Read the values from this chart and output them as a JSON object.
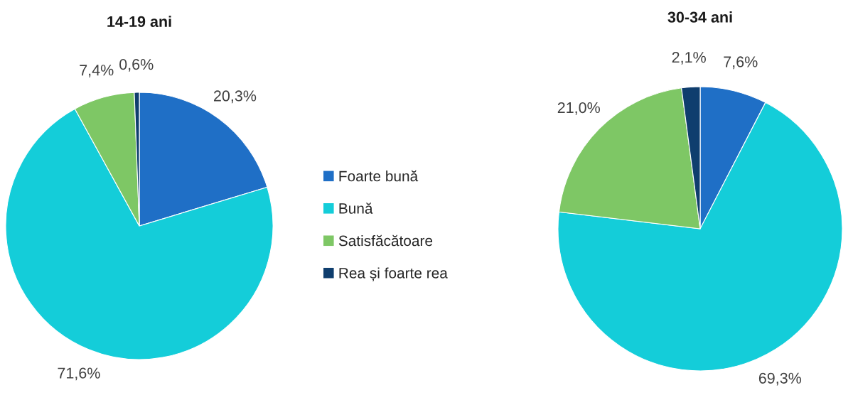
{
  "chart_data": {
    "type": "pie",
    "categories": [
      "Foarte bună",
      "Bună",
      "Satisfăcătoare",
      "Rea și foarte rea"
    ],
    "colors": [
      "#1f6fc6",
      "#14cdd9",
      "#7ec765",
      "#0f3e6e"
    ],
    "legend": "center",
    "series": [
      {
        "name": "14-19 ani",
        "values": [
          20.3,
          71.6,
          7.4,
          0.6
        ],
        "value_labels": [
          "20,3%",
          "71,6%",
          "7,4%",
          "0,6%"
        ]
      },
      {
        "name": "30-34 ani",
        "values": [
          7.6,
          69.3,
          21.0,
          2.1
        ],
        "value_labels": [
          "7,6%",
          "69,3%",
          "21,0%",
          "2,1%"
        ]
      }
    ]
  }
}
